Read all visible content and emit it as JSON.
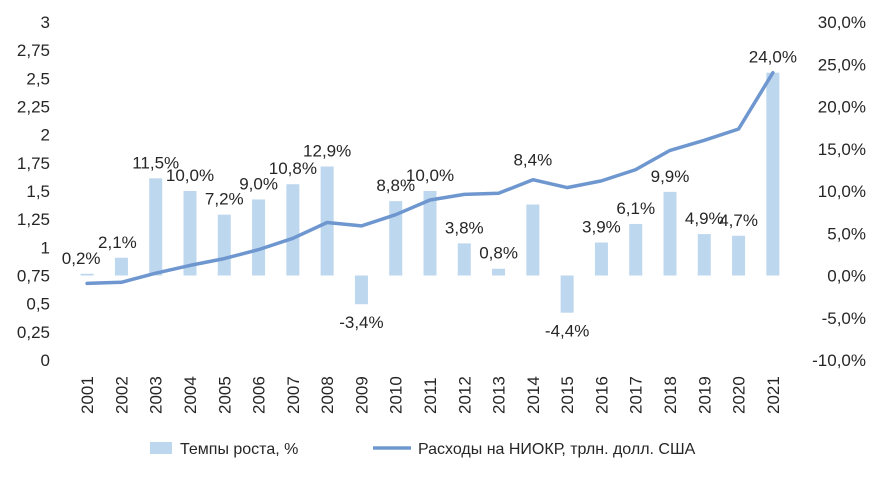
{
  "chart_data": {
    "type": "bar",
    "categories": [
      "2001",
      "2002",
      "2003",
      "2004",
      "2005",
      "2006",
      "2007",
      "2008",
      "2009",
      "2010",
      "2011",
      "2012",
      "2013",
      "2014",
      "2015",
      "2016",
      "2017",
      "2018",
      "2019",
      "2020",
      "2021"
    ],
    "series": [
      {
        "name": "Темпы роста, %",
        "type": "bar",
        "axis": "right",
        "color": "#bdd7ee",
        "values": [
          0.2,
          2.1,
          11.5,
          10.0,
          7.2,
          9.0,
          10.8,
          12.9,
          -3.4,
          8.8,
          10.0,
          3.8,
          0.8,
          8.4,
          -4.4,
          3.9,
          6.1,
          9.9,
          4.9,
          4.7,
          24.0
        ],
        "labels": [
          "0,2%",
          "2,1%",
          "11,5%",
          "10,0%",
          "7,2%",
          "9,0%",
          "10,8%",
          "12,9%",
          "-3,4%",
          "8,8%",
          "10,0%",
          "3,8%",
          "0,8%",
          "8,4%",
          "-4,4%",
          "3,9%",
          "6,1%",
          "9,9%",
          "4,9%",
          "4,7%",
          "24,0%"
        ]
      },
      {
        "name": "Расходы на НИОКР, трлн. долл. США",
        "type": "line",
        "axis": "left",
        "color": "#6f97cf",
        "values": [
          0.68,
          0.69,
          0.77,
          0.84,
          0.9,
          0.98,
          1.08,
          1.22,
          1.19,
          1.29,
          1.42,
          1.47,
          1.48,
          1.6,
          1.53,
          1.59,
          1.69,
          1.86,
          1.95,
          2.05,
          2.55
        ]
      }
    ],
    "y_left": {
      "min": 0,
      "max": 3,
      "ticks": [
        0,
        0.25,
        0.5,
        0.75,
        1,
        1.25,
        1.5,
        1.75,
        2,
        2.25,
        2.5,
        2.75,
        3
      ],
      "tick_labels": [
        "0",
        "0,25",
        "0,5",
        "0,75",
        "1",
        "1,25",
        "1,5",
        "1,75",
        "2",
        "2,25",
        "2,5",
        "2,75",
        "3"
      ]
    },
    "y_right": {
      "min": -10,
      "max": 30,
      "ticks": [
        -10,
        -5,
        0,
        5,
        10,
        15,
        20,
        25,
        30
      ],
      "tick_labels": [
        "-10,0%",
        "-5,0%",
        "0,0%",
        "5,0%",
        "10,0%",
        "15,0%",
        "20,0%",
        "25,0%",
        "30,0%"
      ]
    },
    "legend": {
      "position": "bottom",
      "items": [
        "Темпы роста, %",
        "Расходы на НИОКР, трлн. долл. США"
      ]
    },
    "grid": false
  }
}
